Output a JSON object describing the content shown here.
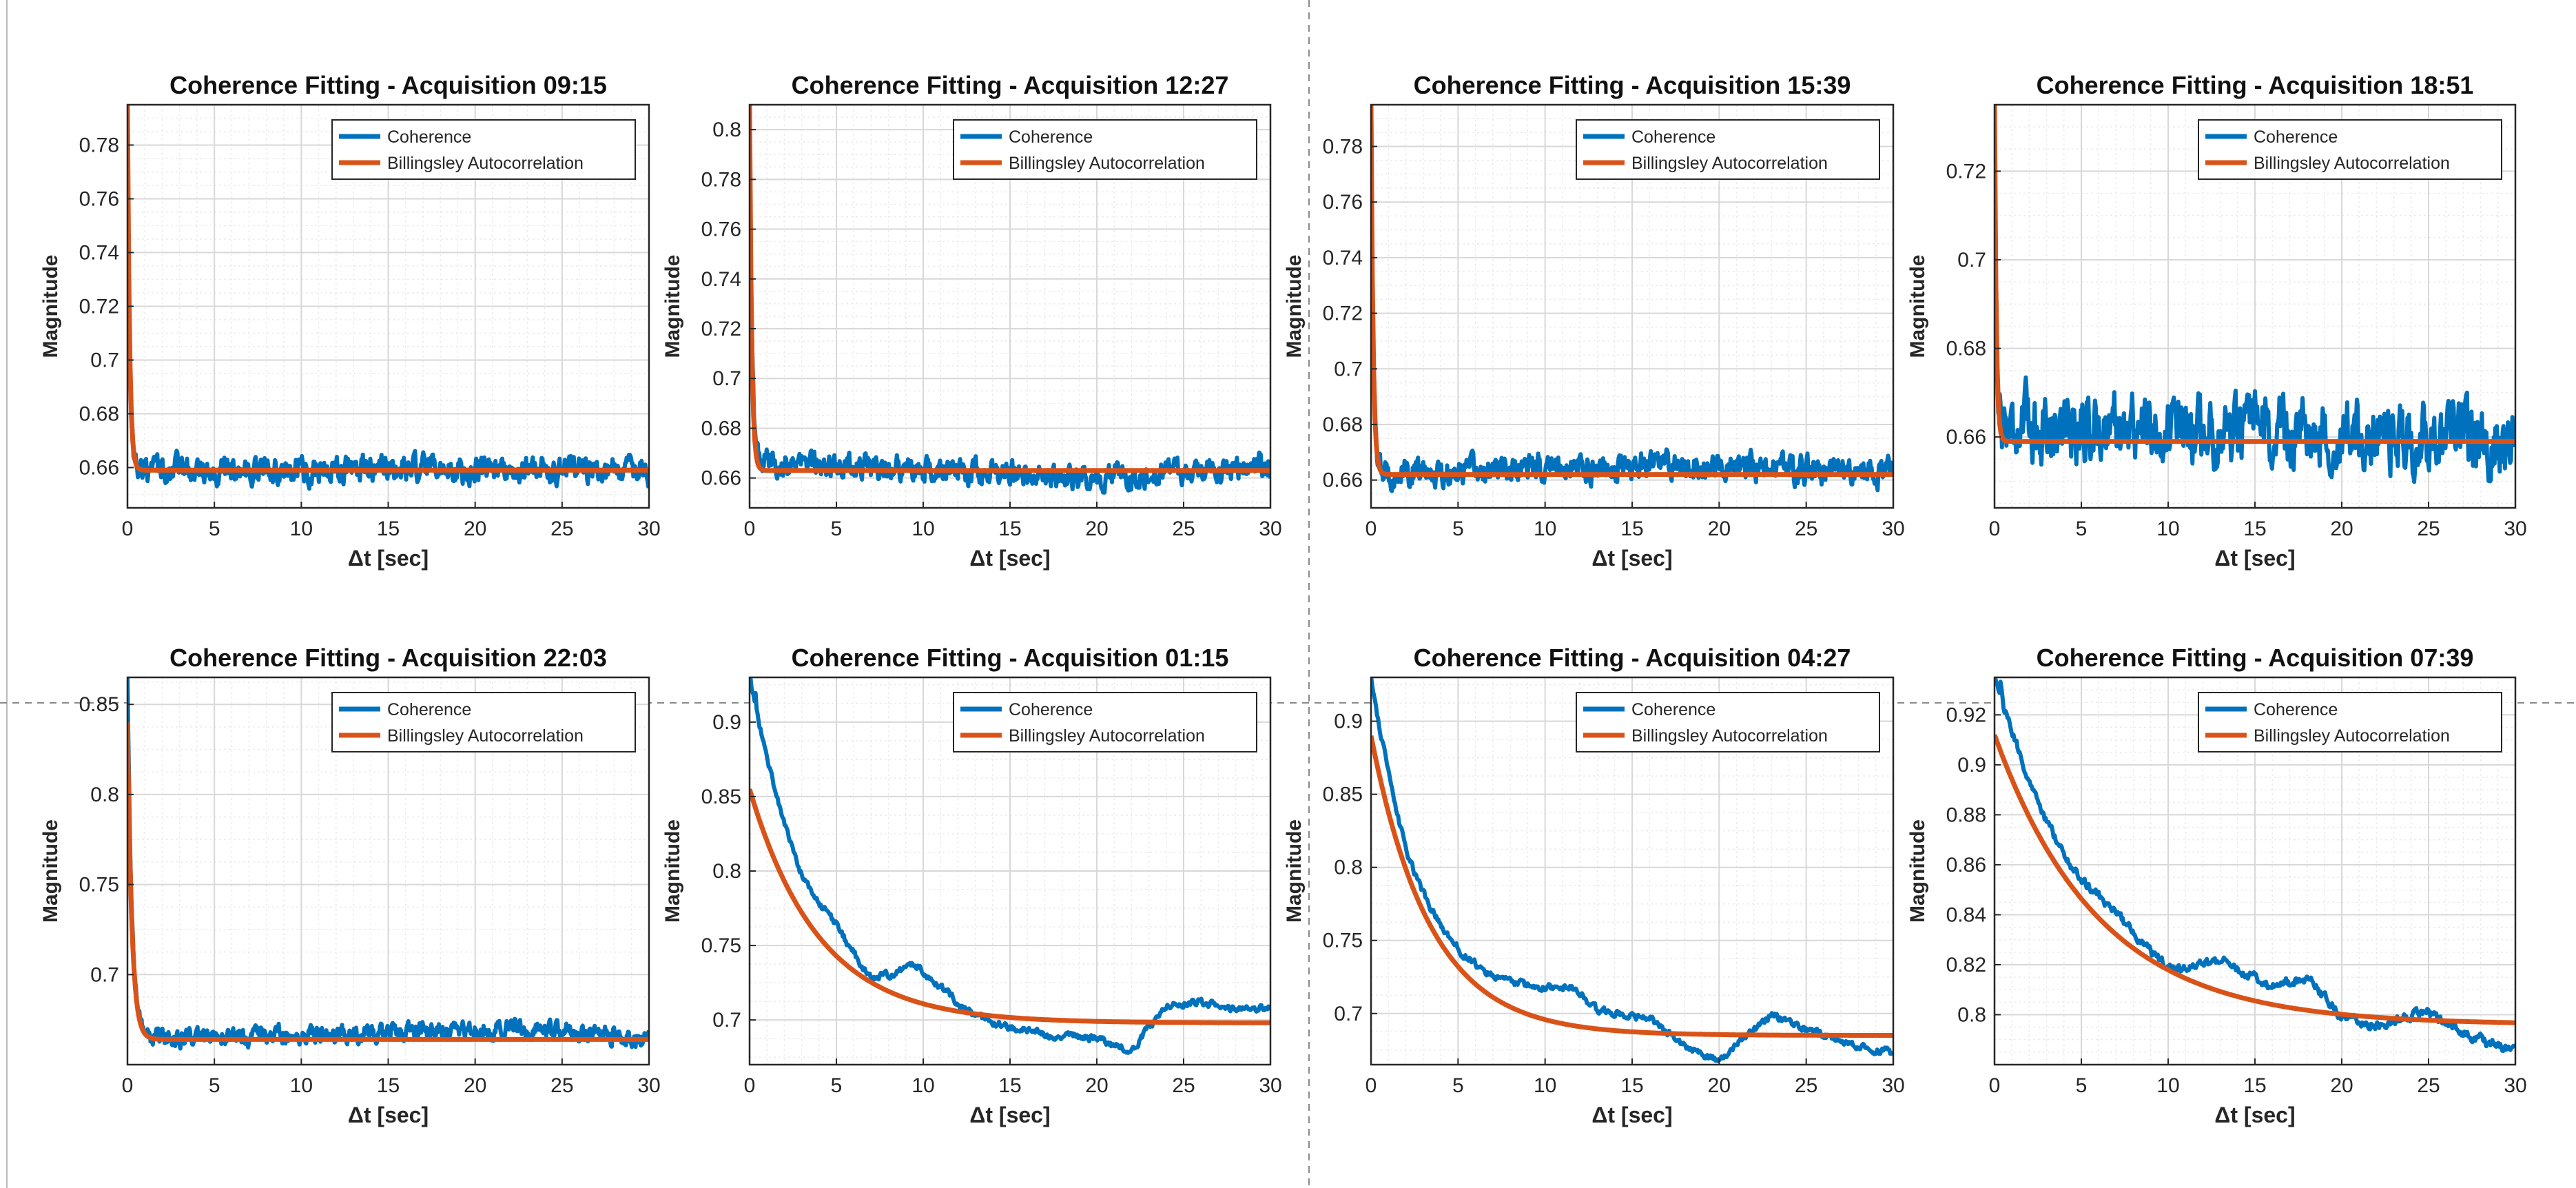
{
  "figure": {
    "xlabel": "Δt [sec]",
    "ylabel": "Magnitude"
  },
  "colors": {
    "coherence": "#0072BD",
    "fit": "#D95319",
    "grid": "#d8d8d8",
    "separator": "#8a8a8a"
  },
  "legend": {
    "coherence": "Coherence",
    "fit": "Billingsley Autocorrelation"
  },
  "chart_data": [
    {
      "type": "line",
      "title": "Coherence Fitting - Acquisition 09:15",
      "xlabel": "Δt [sec]",
      "ylabel": "Magnitude",
      "xlim": [
        0,
        30
      ],
      "ylim": [
        0.645,
        0.795
      ],
      "xticks": [
        0,
        5,
        10,
        15,
        20,
        25,
        30
      ],
      "yticks": [
        0.66,
        0.68,
        0.7,
        0.72,
        0.74,
        0.76,
        0.78
      ],
      "ytick_labels": [
        "0.66",
        "0.68",
        "0.7",
        "0.72",
        "0.74",
        "0.76",
        "0.78"
      ],
      "grid": true,
      "legend_position": "top-right",
      "series": [
        {
          "name": "Coherence",
          "kind": "noisy",
          "start": 0.795,
          "plateau": 0.659,
          "tau": 0.12,
          "noise": 0.004,
          "wander": [
            [
              0,
              0
            ],
            [
              30,
              0
            ]
          ]
        },
        {
          "name": "Billingsley Autocorrelation",
          "kind": "fit",
          "start": 0.795,
          "plateau": 0.659,
          "tau": 0.12
        }
      ]
    },
    {
      "type": "line",
      "title": "Coherence Fitting - Acquisition 12:27",
      "xlabel": "Δt [sec]",
      "ylabel": "Magnitude",
      "xlim": [
        0,
        30
      ],
      "ylim": [
        0.648,
        0.81
      ],
      "xticks": [
        0,
        5,
        10,
        15,
        20,
        25,
        30
      ],
      "yticks": [
        0.66,
        0.68,
        0.7,
        0.72,
        0.74,
        0.76,
        0.78,
        0.8
      ],
      "ytick_labels": [
        "0.66",
        "0.68",
        "0.7",
        "0.72",
        "0.74",
        "0.76",
        "0.78",
        "0.8"
      ],
      "grid": true,
      "legend_position": "top-right",
      "series": [
        {
          "name": "Coherence",
          "kind": "noisy",
          "start": 0.81,
          "plateau": 0.663,
          "tau": 0.12,
          "noise": 0.004,
          "wander": [
            [
              0,
              0.004
            ],
            [
              5,
              0.002
            ],
            [
              20,
              -0.003
            ],
            [
              30,
              0.002
            ]
          ]
        },
        {
          "name": "Billingsley Autocorrelation",
          "kind": "fit",
          "start": 0.81,
          "plateau": 0.663,
          "tau": 0.12
        }
      ]
    },
    {
      "type": "line",
      "title": "Coherence Fitting - Acquisition 15:39",
      "xlabel": "Δt [sec]",
      "ylabel": "Magnitude",
      "xlim": [
        0,
        30
      ],
      "ylim": [
        0.65,
        0.795
      ],
      "xticks": [
        0,
        5,
        10,
        15,
        20,
        25,
        30
      ],
      "yticks": [
        0.66,
        0.68,
        0.7,
        0.72,
        0.74,
        0.76,
        0.78
      ],
      "ytick_labels": [
        "0.66",
        "0.68",
        "0.7",
        "0.72",
        "0.74",
        "0.76",
        "0.78"
      ],
      "grid": true,
      "legend_position": "top-right",
      "series": [
        {
          "name": "Coherence",
          "kind": "noisy",
          "start": 0.795,
          "plateau": 0.662,
          "tau": 0.12,
          "noise": 0.004,
          "wander": [
            [
              0,
              0
            ],
            [
              18,
              0.004
            ],
            [
              30,
              0
            ]
          ]
        },
        {
          "name": "Billingsley Autocorrelation",
          "kind": "fit",
          "start": 0.795,
          "plateau": 0.662,
          "tau": 0.12
        }
      ]
    },
    {
      "type": "line",
      "title": "Coherence Fitting - Acquisition 18:51",
      "xlabel": "Δt [sec]",
      "ylabel": "Magnitude",
      "xlim": [
        0,
        30
      ],
      "ylim": [
        0.644,
        0.735
      ],
      "xticks": [
        0,
        5,
        10,
        15,
        20,
        25,
        30
      ],
      "yticks": [
        0.66,
        0.68,
        0.7,
        0.72
      ],
      "ytick_labels": [
        "0.66",
        "0.68",
        "0.7",
        "0.72"
      ],
      "grid": true,
      "legend_position": "top-right",
      "series": [
        {
          "name": "Coherence",
          "kind": "noisy",
          "start": 0.735,
          "plateau": 0.659,
          "tau": 0.1,
          "noise": 0.006,
          "wander": [
            [
              0,
              0.004
            ],
            [
              30,
              0
            ]
          ]
        },
        {
          "name": "Billingsley Autocorrelation",
          "kind": "fit",
          "start": 0.735,
          "plateau": 0.659,
          "tau": 0.1
        }
      ]
    },
    {
      "type": "line",
      "title": "Coherence Fitting - Acquisition 22:03",
      "xlabel": "Δt [sec]",
      "ylabel": "Magnitude",
      "xlim": [
        0,
        30
      ],
      "ylim": [
        0.65,
        0.865
      ],
      "xticks": [
        0,
        5,
        10,
        15,
        20,
        25,
        30
      ],
      "yticks": [
        0.7,
        0.75,
        0.8,
        0.85
      ],
      "ytick_labels": [
        "0.7",
        "0.75",
        "0.8",
        "0.85"
      ],
      "grid": true,
      "legend_position": "top-right",
      "series": [
        {
          "name": "Coherence",
          "kind": "noisy",
          "start": 0.865,
          "plateau": 0.664,
          "tau": 0.25,
          "noise": 0.004,
          "wander": [
            [
              0,
              0
            ],
            [
              23,
              0.006
            ],
            [
              30,
              0
            ]
          ]
        },
        {
          "name": "Billingsley Autocorrelation",
          "kind": "fit",
          "start": 0.84,
          "plateau": 0.664,
          "tau": 0.25
        }
      ]
    },
    {
      "type": "line",
      "title": "Coherence Fitting - Acquisition 01:15",
      "xlabel": "Δt [sec]",
      "ylabel": "Magnitude",
      "xlim": [
        0,
        30
      ],
      "ylim": [
        0.67,
        0.93
      ],
      "xticks": [
        0,
        5,
        10,
        15,
        20,
        25,
        30
      ],
      "yticks": [
        0.7,
        0.75,
        0.8,
        0.85,
        0.9
      ],
      "ytick_labels": [
        "0.7",
        "0.75",
        "0.8",
        "0.85",
        "0.9"
      ],
      "grid": true,
      "legend_position": "top-right",
      "series": [
        {
          "name": "Coherence",
          "kind": "wavy",
          "start": 0.93,
          "plateau": 0.698,
          "tau": 4.0,
          "noise": 0.002,
          "wander": [
            [
              0,
              0.06
            ],
            [
              0.4,
              0.0
            ],
            [
              3,
              -0.01
            ],
            [
              5,
              0.0
            ],
            [
              7,
              -0.01
            ],
            [
              9.5,
              0.018
            ],
            [
              11,
              0.01
            ],
            [
              13,
              -0.005
            ],
            [
              16,
              -0.01
            ],
            [
              20,
              -0.012
            ],
            [
              22,
              -0.02
            ],
            [
              24,
              0.012
            ],
            [
              26,
              0.014
            ],
            [
              28,
              0.008
            ],
            [
              30,
              0.01
            ]
          ]
        },
        {
          "name": "Billingsley Autocorrelation",
          "kind": "fit",
          "start": 0.855,
          "plateau": 0.698,
          "tau": 4.0
        }
      ]
    },
    {
      "type": "line",
      "title": "Coherence Fitting - Acquisition 04:27",
      "xlabel": "Δt [sec]",
      "ylabel": "Magnitude",
      "xlim": [
        0,
        30
      ],
      "ylim": [
        0.665,
        0.93
      ],
      "xticks": [
        0,
        5,
        10,
        15,
        20,
        25,
        30
      ],
      "yticks": [
        0.7,
        0.75,
        0.8,
        0.85,
        0.9
      ],
      "ytick_labels": [
        "0.7",
        "0.75",
        "0.8",
        "0.85",
        "0.9"
      ],
      "grid": true,
      "legend_position": "top-right",
      "series": [
        {
          "name": "Coherence",
          "kind": "wavy",
          "start": 0.93,
          "plateau": 0.685,
          "tau": 3.4,
          "noise": 0.002,
          "wander": [
            [
              0,
              0.04
            ],
            [
              0.3,
              0.0
            ],
            [
              2,
              -0.008
            ],
            [
              4,
              0.0
            ],
            [
              7,
              0.01
            ],
            [
              10,
              0.02
            ],
            [
              11.5,
              0.025
            ],
            [
              13,
              0.012
            ],
            [
              16,
              0.01
            ],
            [
              18,
              -0.008
            ],
            [
              20,
              -0.018
            ],
            [
              23,
              0.014
            ],
            [
              25,
              0.004
            ],
            [
              28,
              -0.008
            ],
            [
              30,
              -0.012
            ]
          ]
        },
        {
          "name": "Billingsley Autocorrelation",
          "kind": "fit",
          "start": 0.89,
          "plateau": 0.685,
          "tau": 3.4
        }
      ]
    },
    {
      "type": "line",
      "title": "Coherence Fitting - Acquisition 07:39",
      "xlabel": "Δt [sec]",
      "ylabel": "Magnitude",
      "xlim": [
        0,
        30
      ],
      "ylim": [
        0.78,
        0.935
      ],
      "xticks": [
        0,
        5,
        10,
        15,
        20,
        25,
        30
      ],
      "yticks": [
        0.8,
        0.82,
        0.84,
        0.86,
        0.88,
        0.9,
        0.92
      ],
      "ytick_labels": [
        "0.8",
        "0.82",
        "0.84",
        "0.86",
        "0.88",
        "0.9",
        "0.92"
      ],
      "grid": true,
      "legend_position": "top-right",
      "series": [
        {
          "name": "Coherence",
          "kind": "wavy",
          "start": 0.935,
          "plateau": 0.796,
          "tau": 6.0,
          "noise": 0.0015,
          "wander": [
            [
              0,
              0.02
            ],
            [
              0.5,
              0.0
            ],
            [
              4,
              -0.004
            ],
            [
              7,
              0.002
            ],
            [
              10,
              -0.004
            ],
            [
              13,
              0.01
            ],
            [
              16,
              0.006
            ],
            [
              18,
              0.012
            ],
            [
              20,
              -0.002
            ],
            [
              22,
              -0.004
            ],
            [
              25,
              0.003
            ],
            [
              27,
              -0.005
            ],
            [
              30,
              -0.012
            ]
          ]
        },
        {
          "name": "Billingsley Autocorrelation",
          "kind": "fit",
          "start": 0.912,
          "plateau": 0.796,
          "tau": 6.0
        }
      ]
    }
  ]
}
